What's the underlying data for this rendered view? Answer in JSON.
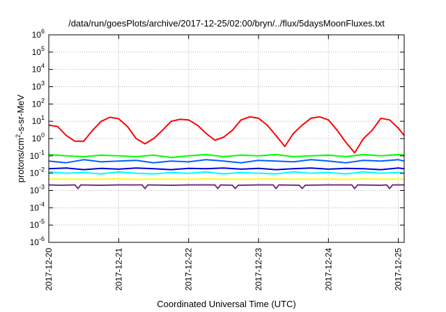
{
  "chart_data": {
    "type": "line",
    "title": "/data/run/goesPlots/archive/2017-12-25/02:00/bryn/../flux/5daysMoonFluxes.txt",
    "xlabel": "Coordinated Universal Time (UTC)",
    "ylabel": {
      "base": "protons/cm",
      "sup": "2",
      "rest": "-s-sr-MeV"
    },
    "x_range": [
      "2017-12-20T00:00",
      "2017-12-25T02:00"
    ],
    "x_ticks": [
      "2017-12-20",
      "2017-12-21",
      "2017-12-22",
      "2017-12-23",
      "2017-12-24",
      "2017-12-25"
    ],
    "y_scale": "log",
    "y_range": [
      1e-06,
      1000000.0
    ],
    "y_ticks": [
      {
        "base": "10",
        "exp": "-6"
      },
      {
        "base": "10",
        "exp": "-5"
      },
      {
        "base": "10",
        "exp": "-4"
      },
      {
        "base": "10",
        "exp": "-3"
      },
      {
        "base": "10",
        "exp": "-2"
      },
      {
        "base": "10",
        "exp": "-1"
      },
      {
        "base": "10",
        "exp": "0"
      },
      {
        "base": "10",
        "exp": "1"
      },
      {
        "base": "10",
        "exp": "2"
      },
      {
        "base": "10",
        "exp": "3"
      },
      {
        "base": "10",
        "exp": "4"
      },
      {
        "base": "10",
        "exp": "5"
      },
      {
        "base": "10",
        "exp": "6"
      }
    ],
    "grid": true,
    "series": [
      {
        "color": "#ff0000",
        "x": [
          "2017-12-20T00:00",
          "2017-12-20T03:00",
          "2017-12-20T06:00",
          "2017-12-20T09:00",
          "2017-12-20T12:00",
          "2017-12-20T15:00",
          "2017-12-20T18:00",
          "2017-12-20T21:00",
          "2017-12-21T00:00",
          "2017-12-21T03:00",
          "2017-12-21T06:00",
          "2017-12-21T09:00",
          "2017-12-21T12:00",
          "2017-12-21T15:00",
          "2017-12-21T18:00",
          "2017-12-21T21:00",
          "2017-12-22T00:00",
          "2017-12-22T03:00",
          "2017-12-22T06:00",
          "2017-12-22T09:00",
          "2017-12-22T12:00",
          "2017-12-22T15:00",
          "2017-12-22T18:00",
          "2017-12-22T21:00",
          "2017-12-23T00:00",
          "2017-12-23T03:00",
          "2017-12-23T06:00",
          "2017-12-23T09:00",
          "2017-12-23T12:00",
          "2017-12-23T15:00",
          "2017-12-23T18:00",
          "2017-12-23T21:00",
          "2017-12-24T00:00",
          "2017-12-24T03:00",
          "2017-12-24T06:00",
          "2017-12-24T09:00",
          "2017-12-24T12:00",
          "2017-12-24T15:00",
          "2017-12-24T18:00",
          "2017-12-24T21:00",
          "2017-12-25T00:00",
          "2017-12-25T02:00"
        ],
        "y": [
          6,
          5,
          1.5,
          0.7,
          0.7,
          3,
          10,
          17,
          14,
          5,
          1,
          0.5,
          1,
          3,
          10,
          13,
          12,
          6,
          2,
          0.8,
          1.2,
          3,
          12,
          18,
          15,
          6,
          1.5,
          0.35,
          2,
          6,
          15,
          18,
          12,
          3,
          0.6,
          0.15,
          1,
          3,
          15,
          12,
          4,
          1.5
        ]
      },
      {
        "color": "#00ff00",
        "x": [
          "2017-12-20T00:00",
          "2017-12-20T06:00",
          "2017-12-20T12:00",
          "2017-12-20T18:00",
          "2017-12-21T00:00",
          "2017-12-21T06:00",
          "2017-12-21T12:00",
          "2017-12-21T18:00",
          "2017-12-22T00:00",
          "2017-12-22T06:00",
          "2017-12-22T12:00",
          "2017-12-22T18:00",
          "2017-12-23T00:00",
          "2017-12-23T06:00",
          "2017-12-23T12:00",
          "2017-12-23T18:00",
          "2017-12-24T00:00",
          "2017-12-24T06:00",
          "2017-12-24T12:00",
          "2017-12-24T18:00",
          "2017-12-25T00:00",
          "2017-12-25T02:00"
        ],
        "y": [
          0.12,
          0.1,
          0.09,
          0.11,
          0.1,
          0.09,
          0.11,
          0.08,
          0.1,
          0.12,
          0.09,
          0.11,
          0.1,
          0.12,
          0.09,
          0.1,
          0.11,
          0.09,
          0.12,
          0.1,
          0.12,
          0.11
        ]
      },
      {
        "color": "#00ffff",
        "x": [
          "2017-12-20T00:00",
          "2017-12-20T06:00",
          "2017-12-20T12:00",
          "2017-12-20T18:00",
          "2017-12-21T00:00",
          "2017-12-21T06:00",
          "2017-12-21T12:00",
          "2017-12-21T18:00",
          "2017-12-22T00:00",
          "2017-12-22T06:00",
          "2017-12-22T12:00",
          "2017-12-22T18:00",
          "2017-12-23T00:00",
          "2017-12-23T06:00",
          "2017-12-23T12:00",
          "2017-12-23T18:00",
          "2017-12-24T00:00",
          "2017-12-24T06:00",
          "2017-12-24T12:00",
          "2017-12-24T18:00",
          "2017-12-25T00:00",
          "2017-12-25T02:00"
        ],
        "y": [
          0.012,
          0.01,
          0.011,
          0.009,
          0.012,
          0.01,
          0.009,
          0.011,
          0.01,
          0.012,
          0.009,
          0.011,
          0.01,
          0.009,
          0.012,
          0.01,
          0.011,
          0.009,
          0.012,
          0.01,
          0.011,
          0.01
        ]
      },
      {
        "color": "#0060ff",
        "x": [
          "2017-12-20T00:00",
          "2017-12-20T06:00",
          "2017-12-20T12:00",
          "2017-12-20T18:00",
          "2017-12-21T00:00",
          "2017-12-21T06:00",
          "2017-12-21T12:00",
          "2017-12-21T18:00",
          "2017-12-22T00:00",
          "2017-12-22T06:00",
          "2017-12-22T12:00",
          "2017-12-22T18:00",
          "2017-12-23T00:00",
          "2017-12-23T06:00",
          "2017-12-23T12:00",
          "2017-12-23T18:00",
          "2017-12-24T00:00",
          "2017-12-24T06:00",
          "2017-12-24T12:00",
          "2017-12-24T18:00",
          "2017-12-25T00:00",
          "2017-12-25T02:00"
        ],
        "y": [
          0.05,
          0.04,
          0.06,
          0.045,
          0.05,
          0.055,
          0.04,
          0.05,
          0.045,
          0.06,
          0.05,
          0.04,
          0.055,
          0.05,
          0.045,
          0.06,
          0.05,
          0.04,
          0.055,
          0.05,
          0.06,
          0.05
        ]
      },
      {
        "color": "#0000dd",
        "x": [
          "2017-12-20T00:00",
          "2017-12-20T06:00",
          "2017-12-20T12:00",
          "2017-12-20T18:00",
          "2017-12-21T00:00",
          "2017-12-21T06:00",
          "2017-12-21T12:00",
          "2017-12-21T18:00",
          "2017-12-22T00:00",
          "2017-12-22T06:00",
          "2017-12-22T12:00",
          "2017-12-22T18:00",
          "2017-12-23T00:00",
          "2017-12-23T06:00",
          "2017-12-23T12:00",
          "2017-12-23T18:00",
          "2017-12-24T00:00",
          "2017-12-24T06:00",
          "2017-12-24T12:00",
          "2017-12-24T18:00",
          "2017-12-25T00:00",
          "2017-12-25T02:00"
        ],
        "y": [
          0.018,
          0.02,
          0.016,
          0.019,
          0.017,
          0.02,
          0.018,
          0.016,
          0.019,
          0.018,
          0.02,
          0.017,
          0.019,
          0.016,
          0.018,
          0.02,
          0.017,
          0.019,
          0.018,
          0.016,
          0.02,
          0.018
        ]
      },
      {
        "color": "#ffff00",
        "x": [
          "2017-12-20T00:00",
          "2017-12-20T06:00",
          "2017-12-20T12:00",
          "2017-12-20T18:00",
          "2017-12-21T00:00",
          "2017-12-21T06:00",
          "2017-12-21T12:00",
          "2017-12-21T18:00",
          "2017-12-22T00:00",
          "2017-12-22T06:00",
          "2017-12-22T12:00",
          "2017-12-22T18:00",
          "2017-12-23T00:00",
          "2017-12-23T06:00",
          "2017-12-23T12:00",
          "2017-12-23T18:00",
          "2017-12-24T00:00",
          "2017-12-24T06:00",
          "2017-12-24T12:00",
          "2017-12-24T18:00",
          "2017-12-25T00:00",
          "2017-12-25T02:00"
        ],
        "y": [
          0.0045,
          0.0045,
          0.0044,
          0.0045,
          0.0046,
          0.0044,
          0.0045,
          0.0045,
          0.0044,
          0.0046,
          0.0045,
          0.0044,
          0.0045,
          0.0046,
          0.0044,
          0.0045,
          0.0045,
          0.0044,
          0.0046,
          0.0045,
          0.0045,
          0.0045
        ]
      },
      {
        "color": "#7b2d82",
        "x": [
          "2017-12-20T00:00",
          "2017-12-20T04:00",
          "2017-12-20T09:00",
          "2017-12-20T10:00",
          "2017-12-20T11:00",
          "2017-12-20T18:00",
          "2017-12-21T00:00",
          "2017-12-21T08:00",
          "2017-12-21T09:00",
          "2017-12-21T10:00",
          "2017-12-21T18:00",
          "2017-12-22T00:00",
          "2017-12-22T09:00",
          "2017-12-22T10:00",
          "2017-12-22T11:00",
          "2017-12-22T15:00",
          "2017-12-22T16:00",
          "2017-12-22T17:00",
          "2017-12-23T00:00",
          "2017-12-23T05:00",
          "2017-12-23T06:00",
          "2017-12-23T07:00",
          "2017-12-23T14:00",
          "2017-12-23T15:00",
          "2017-12-23T16:00",
          "2017-12-24T00:00",
          "2017-12-24T08:00",
          "2017-12-24T09:00",
          "2017-12-24T10:00",
          "2017-12-24T18:00",
          "2017-12-24T20:00",
          "2017-12-24T21:00",
          "2017-12-24T22:00",
          "2017-12-25T00:00",
          "2017-12-25T02:00"
        ],
        "y": [
          0.0021,
          0.002,
          0.0021,
          0.0013,
          0.0021,
          0.002,
          0.0021,
          0.0021,
          0.0013,
          0.0021,
          0.002,
          0.0021,
          0.0021,
          0.0013,
          0.0021,
          0.002,
          0.0013,
          0.002,
          0.0021,
          0.0021,
          0.0013,
          0.0021,
          0.002,
          0.0013,
          0.002,
          0.0021,
          0.0021,
          0.0013,
          0.0021,
          0.002,
          0.0021,
          0.0013,
          0.0021,
          0.0021,
          0.0021
        ]
      }
    ]
  }
}
